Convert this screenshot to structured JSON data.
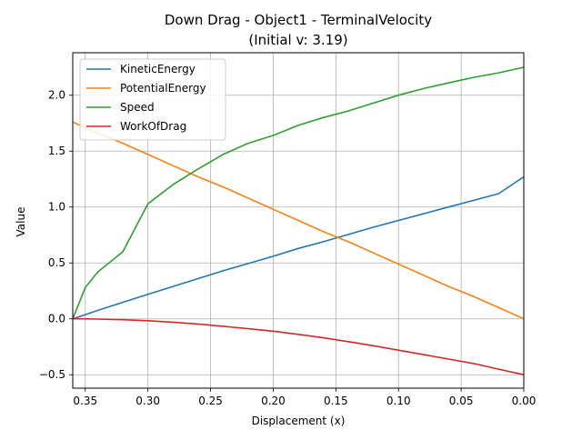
{
  "chart_data": {
    "type": "line",
    "title": "Down Drag - Object1 - TerminalVelocity",
    "subtitle": "(Initial v: 3.19)",
    "xlabel": "Displacement (x)",
    "ylabel": "Value",
    "xlim": [
      0.36,
      0.0
    ],
    "ylim": [
      -0.62,
      2.38
    ],
    "x_inverted": true,
    "grid": true,
    "legend_position": "top-left",
    "xticks": [
      0.35,
      0.3,
      0.25,
      0.2,
      0.15,
      0.1,
      0.05,
      0.0
    ],
    "xtick_labels": [
      "0.35",
      "0.30",
      "0.25",
      "0.20",
      "0.15",
      "0.10",
      "0.05",
      "0.00"
    ],
    "yticks": [
      -0.5,
      0.0,
      0.5,
      1.0,
      1.5,
      2.0
    ],
    "ytick_labels": [
      "−0.5",
      "0.0",
      "0.5",
      "1.0",
      "1.5",
      "2.0"
    ],
    "x": [
      0.36,
      0.35,
      0.34,
      0.32,
      0.3,
      0.28,
      0.26,
      0.24,
      0.22,
      0.2,
      0.18,
      0.16,
      0.14,
      0.12,
      0.1,
      0.08,
      0.06,
      0.04,
      0.02,
      0.0
    ],
    "series": [
      {
        "name": "KineticEnergy",
        "color": "#1f77b4",
        "values": [
          0.0,
          0.038,
          0.076,
          0.148,
          0.22,
          0.29,
          0.36,
          0.43,
          0.495,
          0.56,
          0.63,
          0.69,
          0.755,
          0.82,
          0.88,
          0.94,
          1.0,
          1.06,
          1.12,
          1.27
        ]
      },
      {
        "name": "PotentialEnergy",
        "color": "#ff7f0e",
        "values": [
          1.76,
          1.71,
          1.66,
          1.57,
          1.47,
          1.37,
          1.27,
          1.18,
          1.08,
          0.98,
          0.88,
          0.78,
          0.69,
          0.59,
          0.49,
          0.39,
          0.29,
          0.2,
          0.1,
          0.0
        ]
      },
      {
        "name": "Speed",
        "color": "#2ca02c",
        "values": [
          0.0,
          0.28,
          0.42,
          0.6,
          1.03,
          1.2,
          1.34,
          1.47,
          1.57,
          1.64,
          1.73,
          1.8,
          1.86,
          1.93,
          2.0,
          2.06,
          2.11,
          2.16,
          2.2,
          2.25
        ]
      },
      {
        "name": "WorkOfDrag",
        "color": "#d62728",
        "values": [
          0.0,
          0.0,
          -0.002,
          -0.008,
          -0.017,
          -0.03,
          -0.046,
          -0.066,
          -0.088,
          -0.11,
          -0.139,
          -0.17,
          -0.204,
          -0.24,
          -0.28,
          -0.32,
          -0.36,
          -0.4,
          -0.45,
          -0.5
        ]
      }
    ]
  }
}
